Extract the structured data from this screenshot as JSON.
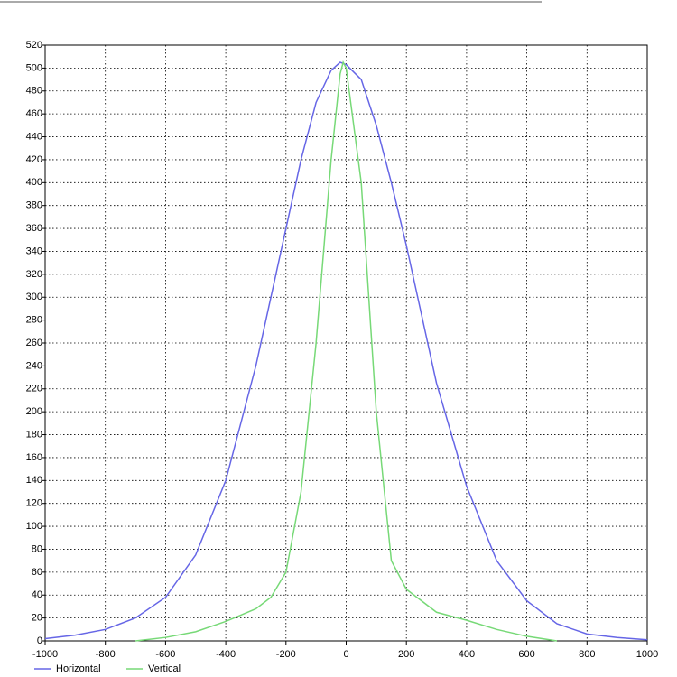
{
  "chart_data": {
    "type": "line",
    "xlim": [
      -1000,
      1000
    ],
    "xticks": [
      -1000,
      -800,
      -600,
      -400,
      -200,
      0,
      200,
      400,
      600,
      800,
      1000
    ],
    "ylim": [
      0,
      520
    ],
    "yticks": [
      0,
      20,
      40,
      60,
      80,
      100,
      120,
      140,
      160,
      180,
      200,
      220,
      240,
      260,
      280,
      300,
      320,
      340,
      360,
      380,
      400,
      420,
      440,
      460,
      480,
      500,
      520
    ],
    "grid": true,
    "legend": "bottom-left",
    "series": [
      {
        "name": "Horizontal",
        "color": "#6666e6",
        "x": [
          -1000,
          -900,
          -800,
          -700,
          -600,
          -500,
          -400,
          -300,
          -200,
          -150,
          -100,
          -50,
          -20,
          0,
          50,
          100,
          150,
          200,
          300,
          400,
          500,
          600,
          700,
          800,
          900,
          1000
        ],
        "values": [
          2,
          5,
          10,
          20,
          38,
          75,
          140,
          240,
          360,
          420,
          470,
          498,
          505,
          503,
          490,
          450,
          400,
          345,
          225,
          135,
          70,
          35,
          15,
          6,
          3,
          1
        ]
      },
      {
        "name": "Vertical",
        "color": "#77d977",
        "x": [
          -700,
          -600,
          -500,
          -400,
          -300,
          -250,
          -200,
          -150,
          -100,
          -50,
          -20,
          -10,
          0,
          50,
          100,
          150,
          200,
          300,
          400,
          500,
          600,
          700
        ],
        "values": [
          0,
          3,
          8,
          17,
          28,
          38,
          60,
          130,
          260,
          420,
          495,
          505,
          500,
          400,
          200,
          70,
          45,
          25,
          18,
          10,
          4,
          0
        ]
      }
    ]
  }
}
